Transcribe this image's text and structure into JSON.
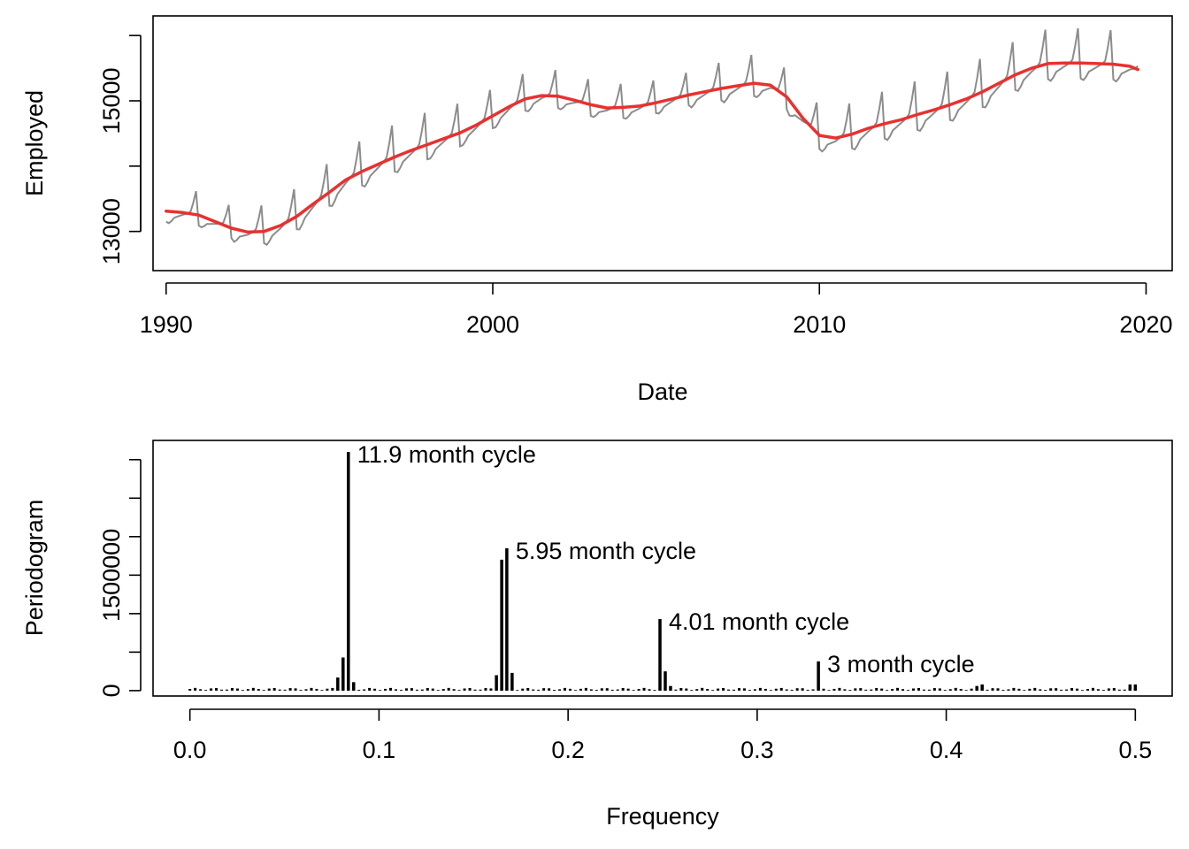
{
  "chart_data": [
    {
      "type": "line",
      "xlabel": "Date",
      "ylabel": "Employed",
      "xlim": [
        1989.6,
        2020.8
      ],
      "ylim": [
        12400,
        16300
      ],
      "x_ticks": [
        1990,
        2000,
        2010,
        2020
      ],
      "x_tick_labels": [
        "1990",
        "2000",
        "2010",
        "2020"
      ],
      "y_ticks": [
        13000,
        15000
      ],
      "y_tick_labels": [
        "13000",
        "15000"
      ],
      "grid": false,
      "series": [
        {
          "role": "observed",
          "color": "#8c8c8c",
          "x_start": 1990.0,
          "x_step": 0.08333,
          "seasonal_amplitude": [
            360,
            340,
            400,
            440,
            460,
            480,
            500,
            500,
            460,
            420,
            400,
            400,
            380,
            360,
            350,
            350,
            400,
            440,
            420,
            460,
            480,
            500,
            520,
            520,
            520,
            520,
            530,
            530,
            520,
            520
          ],
          "seasonal_shape": [
            -0.45,
            -0.5,
            -0.4,
            -0.25,
            -0.2,
            -0.15,
            -0.1,
            -0.05,
            0.0,
            0.1,
            0.5,
            1.0
          ],
          "note_values": "monthly values = trend + amplitude(year) * shape(month)"
        },
        {
          "role": "trend",
          "color": "#e8312f",
          "x": [
            1990.0,
            1990.5,
            1991.0,
            1991.5,
            1992.0,
            1992.5,
            1993.0,
            1993.5,
            1994.0,
            1994.5,
            1995.0,
            1995.5,
            1996.0,
            1996.5,
            1997.0,
            1997.5,
            1998.0,
            1998.5,
            1999.0,
            1999.5,
            2000.0,
            2000.5,
            2001.0,
            2001.5,
            2002.0,
            2002.5,
            2003.0,
            2003.5,
            2004.0,
            2004.5,
            2005.0,
            2005.5,
            2006.0,
            2006.5,
            2007.0,
            2007.5,
            2008.0,
            2008.5,
            2009.0,
            2009.5,
            2010.0,
            2010.5,
            2011.0,
            2011.5,
            2012.0,
            2012.5,
            2013.0,
            2013.5,
            2014.0,
            2014.5,
            2015.0,
            2015.5,
            2016.0,
            2016.5,
            2017.0,
            2017.5,
            2018.0,
            2018.5,
            2019.0,
            2019.5,
            2019.75
          ],
          "y": [
            13310,
            13290,
            13250,
            13150,
            13050,
            12990,
            13000,
            13090,
            13230,
            13420,
            13600,
            13790,
            13920,
            14030,
            14140,
            14240,
            14330,
            14420,
            14510,
            14630,
            14770,
            14910,
            15030,
            15080,
            15070,
            15010,
            14940,
            14890,
            14900,
            14920,
            14970,
            15030,
            15090,
            15140,
            15190,
            15230,
            15270,
            15240,
            15060,
            14730,
            14470,
            14430,
            14490,
            14580,
            14650,
            14710,
            14790,
            14860,
            14940,
            15030,
            15140,
            15270,
            15400,
            15500,
            15570,
            15580,
            15580,
            15570,
            15560,
            15530,
            15480
          ]
        }
      ]
    },
    {
      "type": "bar",
      "xlabel": "Frequency",
      "ylabel": "Periodogram",
      "xlim": [
        -0.0195,
        0.5195
      ],
      "ylim": [
        -70000,
        3250000
      ],
      "x_ticks": [
        0.0,
        0.1,
        0.2,
        0.3,
        0.4,
        0.5
      ],
      "x_tick_labels": [
        "0.0",
        "0.1",
        "0.2",
        "0.3",
        "0.4",
        "0.5"
      ],
      "y_ticks": [
        0,
        1500000
      ],
      "y_tick_labels": [
        "0",
        "1500000"
      ],
      "grid": false,
      "series": [
        {
          "role": "baseline",
          "color": "#000000",
          "freq_start": 0.0,
          "freq_step": 0.002793,
          "count": 180,
          "value": 22000
        },
        {
          "role": "peaks",
          "color": "#000000",
          "freq": [
            0.0782,
            0.081,
            0.0838,
            0.0866,
            0.1621,
            0.1649,
            0.1676,
            0.1704,
            0.2486,
            0.2514,
            0.2542,
            0.3324,
            0.4162,
            0.419,
            0.4972,
            0.5
          ],
          "value": [
            170000,
            430000,
            3100000,
            110000,
            200000,
            1700000,
            1850000,
            230000,
            930000,
            250000,
            60000,
            380000,
            60000,
            80000,
            80000,
            80000
          ]
        }
      ],
      "annotations": [
        {
          "text": "11.9 month cycle",
          "x": 0.0838,
          "y": 3100000
        },
        {
          "text": "5.95 month cycle",
          "x": 0.1676,
          "y": 1850000
        },
        {
          "text": "4.01 month cycle",
          "x": 0.2486,
          "y": 930000
        },
        {
          "text": "3 month cycle",
          "x": 0.3324,
          "y": 380000
        }
      ]
    }
  ]
}
